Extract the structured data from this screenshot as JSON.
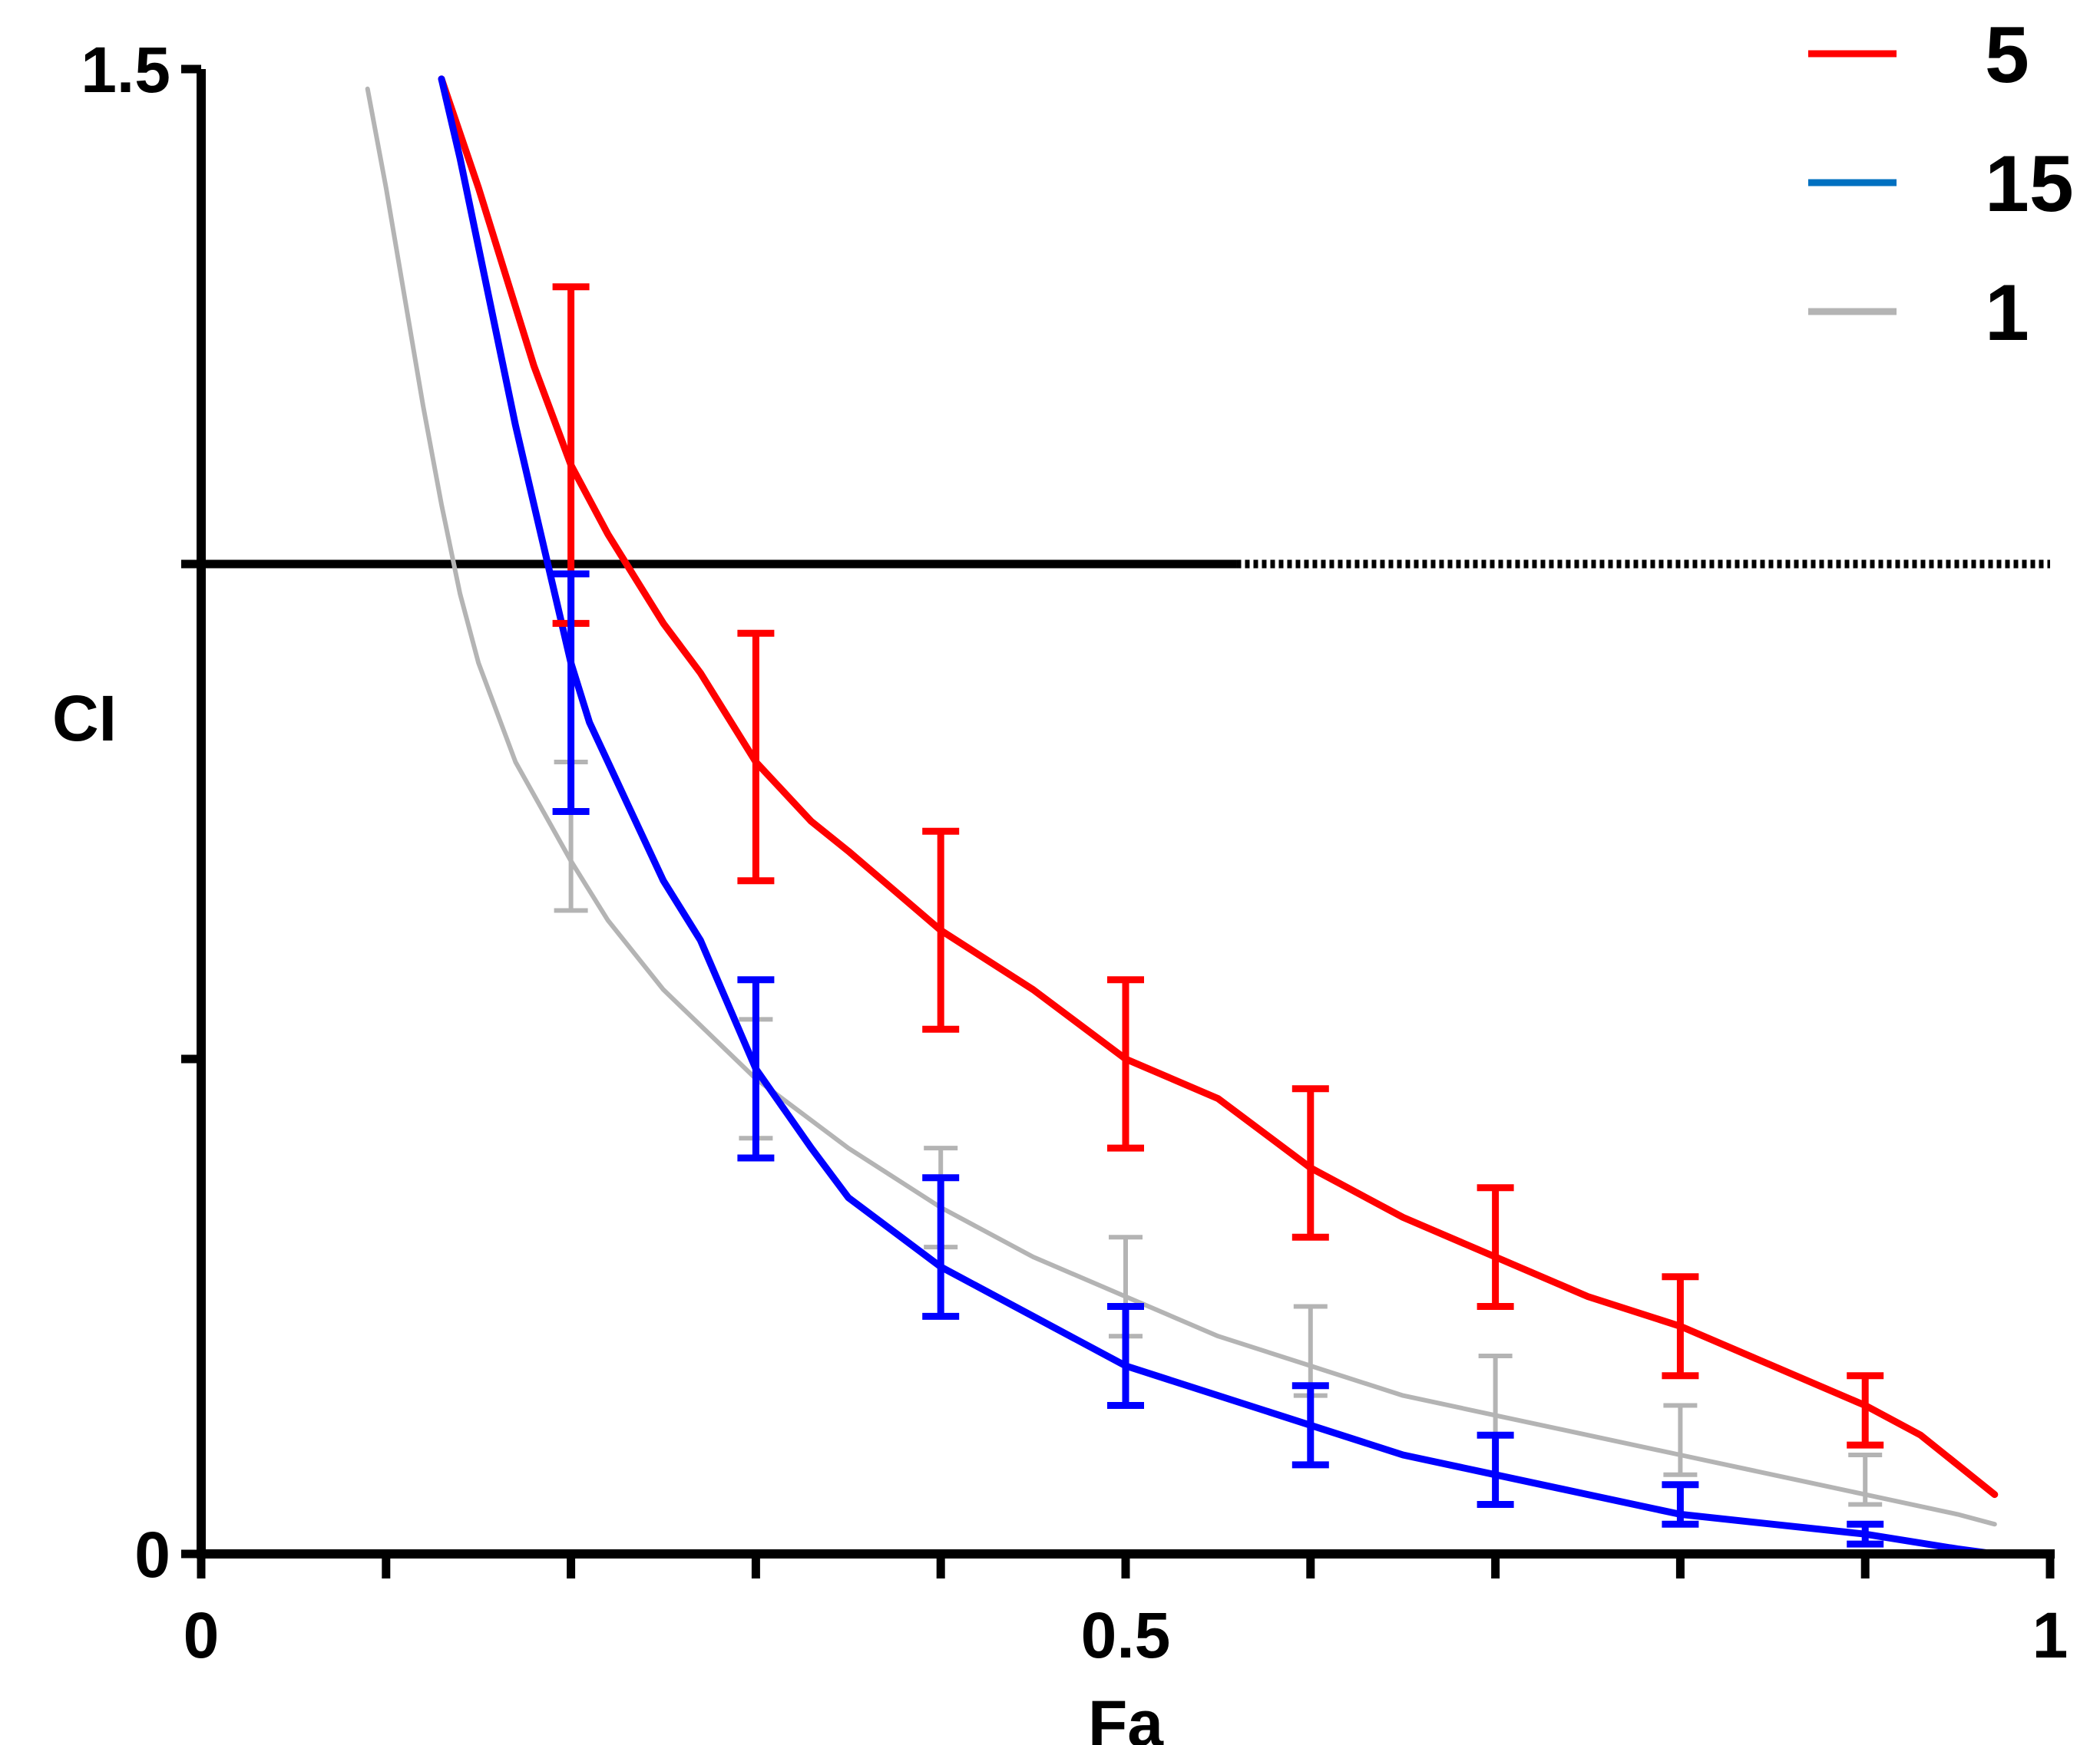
{
  "chart_data": {
    "type": "line",
    "title": "",
    "xlabel": "Fa",
    "ylabel": "CI",
    "xlim": [
      0,
      1
    ],
    "ylim": [
      0,
      1.5
    ],
    "x_ticks": [
      {
        "value": 0,
        "label": "0"
      },
      {
        "value": 0.5,
        "label": "0.5"
      },
      {
        "value": 1,
        "label": "1"
      }
    ],
    "x_minor_ticks": [
      0.1,
      0.2,
      0.3,
      0.4,
      0.6,
      0.7,
      0.8,
      0.9
    ],
    "y_ticks": [
      {
        "value": 0,
        "label": "0"
      },
      {
        "value": 1.5,
        "label": "1.5"
      }
    ],
    "y_minor_ticks": [
      0.5,
      1.0
    ],
    "reference_line": {
      "y": 1.0
    },
    "legend": {
      "position": "top-right"
    },
    "series": [
      {
        "name": "5",
        "color": "#ff0000",
        "curve_x": [
          0.13,
          0.15,
          0.18,
          0.2,
          0.22,
          0.25,
          0.27,
          0.3,
          0.33,
          0.35,
          0.4,
          0.45,
          0.5,
          0.55,
          0.6,
          0.65,
          0.7,
          0.75,
          0.8,
          0.85,
          0.9,
          0.93,
          0.95,
          0.97
        ],
        "curve_y": [
          1.49,
          1.38,
          1.2,
          1.1,
          1.03,
          0.94,
          0.89,
          0.8,
          0.74,
          0.71,
          0.63,
          0.57,
          0.5,
          0.46,
          0.39,
          0.34,
          0.3,
          0.26,
          0.23,
          0.19,
          0.15,
          0.12,
          0.09,
          0.06
        ],
        "error_x": [
          0.2,
          0.3,
          0.4,
          0.5,
          0.6,
          0.7,
          0.8,
          0.9
        ],
        "error_mid": [
          1.1,
          0.8,
          0.62,
          0.5,
          0.39,
          0.31,
          0.23,
          0.14
        ],
        "error_low": [
          0.94,
          0.68,
          0.53,
          0.41,
          0.32,
          0.25,
          0.18,
          0.11
        ],
        "error_high": [
          1.28,
          0.93,
          0.73,
          0.58,
          0.47,
          0.37,
          0.28,
          0.18
        ]
      },
      {
        "name": "15",
        "color": "#0000ff",
        "legend_color": "#0070c0",
        "curve_x": [
          0.13,
          0.14,
          0.15,
          0.16,
          0.17,
          0.18,
          0.19,
          0.2,
          0.21,
          0.22,
          0.23,
          0.25,
          0.27,
          0.3,
          0.33,
          0.35,
          0.4,
          0.45,
          0.5,
          0.55,
          0.6,
          0.65,
          0.7,
          0.75,
          0.8,
          0.85,
          0.9,
          0.95,
          0.97
        ],
        "curve_y": [
          1.49,
          1.41,
          1.32,
          1.23,
          1.14,
          1.06,
          0.98,
          0.9,
          0.84,
          0.8,
          0.76,
          0.68,
          0.62,
          0.49,
          0.41,
          0.36,
          0.29,
          0.24,
          0.19,
          0.16,
          0.13,
          0.1,
          0.08,
          0.06,
          0.04,
          0.03,
          0.02,
          0.005,
          0.0
        ],
        "error_x": [
          0.2,
          0.3,
          0.4,
          0.5,
          0.6,
          0.7,
          0.8,
          0.9
        ],
        "error_mid": [
          0.88,
          0.49,
          0.3,
          0.2,
          0.13,
          0.09,
          0.05,
          0.02
        ],
        "error_low": [
          0.75,
          0.4,
          0.24,
          0.15,
          0.09,
          0.05,
          0.03,
          0.01
        ],
        "error_high": [
          0.99,
          0.58,
          0.38,
          0.25,
          0.17,
          0.12,
          0.07,
          0.03
        ]
      },
      {
        "name": "1",
        "color": "#b4b4b4",
        "curve_x": [
          0.09,
          0.1,
          0.11,
          0.12,
          0.13,
          0.14,
          0.15,
          0.17,
          0.2,
          0.22,
          0.25,
          0.3,
          0.35,
          0.4,
          0.45,
          0.5,
          0.55,
          0.6,
          0.65,
          0.7,
          0.75,
          0.8,
          0.85,
          0.9,
          0.95,
          0.97
        ],
        "curve_y": [
          1.48,
          1.38,
          1.27,
          1.16,
          1.06,
          0.97,
          0.9,
          0.8,
          0.7,
          0.64,
          0.57,
          0.48,
          0.41,
          0.35,
          0.3,
          0.26,
          0.22,
          0.19,
          0.16,
          0.14,
          0.12,
          0.1,
          0.08,
          0.06,
          0.04,
          0.03
        ],
        "error_x": [
          0.2,
          0.3,
          0.4,
          0.5,
          0.6,
          0.7,
          0.8,
          0.9
        ],
        "error_mid": [
          0.7,
          0.49,
          0.35,
          0.26,
          0.2,
          0.15,
          0.11,
          0.07
        ],
        "error_low": [
          0.65,
          0.42,
          0.31,
          0.22,
          0.16,
          0.12,
          0.08,
          0.05
        ],
        "error_high": [
          0.8,
          0.54,
          0.41,
          0.32,
          0.25,
          0.2,
          0.15,
          0.1
        ]
      }
    ]
  }
}
